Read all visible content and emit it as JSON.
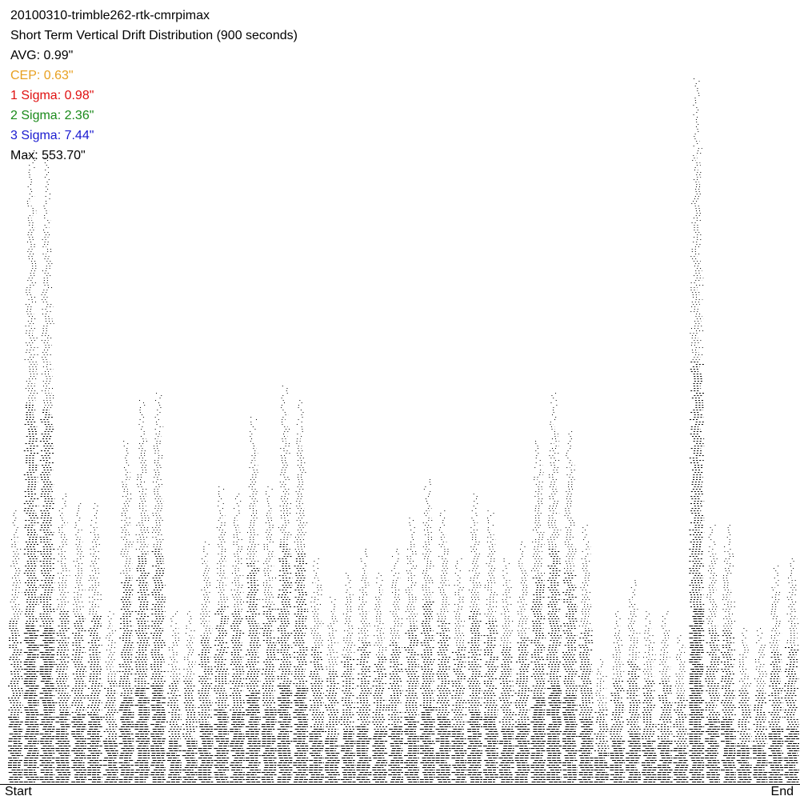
{
  "chart_data": {
    "type": "dot-columns",
    "title": "20100310-trimble262-rtk-cmrpimax",
    "subtitle": "Short Term Vertical Drift Distribution (900 seconds)",
    "stats": [
      {
        "label": "AVG: 0.99\"",
        "color": "#000000"
      },
      {
        "label": "CEP: 0.63\"",
        "color": "#e8a020"
      },
      {
        "label": "1 Sigma: 0.98\"",
        "color": "#e01010"
      },
      {
        "label": "2 Sigma: 2.36\"",
        "color": "#1a8a1a"
      },
      {
        "label": "3 Sigma: 7.44\"",
        "color": "#1a1ad0"
      },
      {
        "label": "Max: 553.70\"",
        "color": "#000000"
      }
    ],
    "x_start_label": "Start",
    "x_end_label": "End",
    "color": "#000000",
    "ylim": [
      0,
      1
    ],
    "values": [
      0.35,
      0.81,
      0.8,
      0.37,
      0.36,
      0.36,
      0.22,
      0.44,
      0.49,
      0.5,
      0.22,
      0.22,
      0.31,
      0.38,
      0.37,
      0.47,
      0.38,
      0.51,
      0.49,
      0.29,
      0.24,
      0.27,
      0.3,
      0.27,
      0.3,
      0.34,
      0.39,
      0.35,
      0.29,
      0.37,
      0.35,
      0.29,
      0.31,
      0.44,
      0.5,
      0.45,
      0.33,
      0.16,
      0.22,
      0.26,
      0.22,
      0.22,
      0.19,
      0.9,
      0.33,
      0.33,
      0.2,
      0.2,
      0.28,
      0.29
    ]
  }
}
